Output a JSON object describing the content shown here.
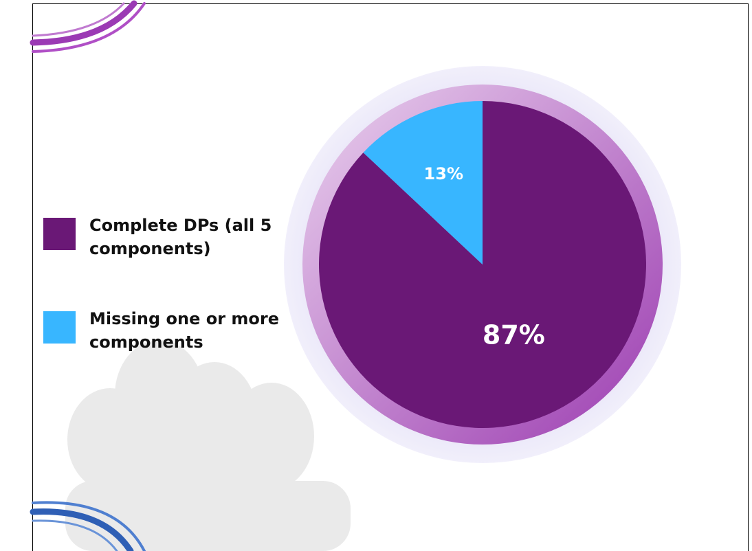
{
  "chart_data": {
    "type": "pie",
    "categories": [
      "Complete DPs (all 5 components)",
      "Missing one or more components"
    ],
    "values": [
      87,
      13
    ],
    "value_labels": [
      "87%",
      "13%"
    ],
    "colors": [
      "#6a1876",
      "#38b6ff"
    ]
  }
}
